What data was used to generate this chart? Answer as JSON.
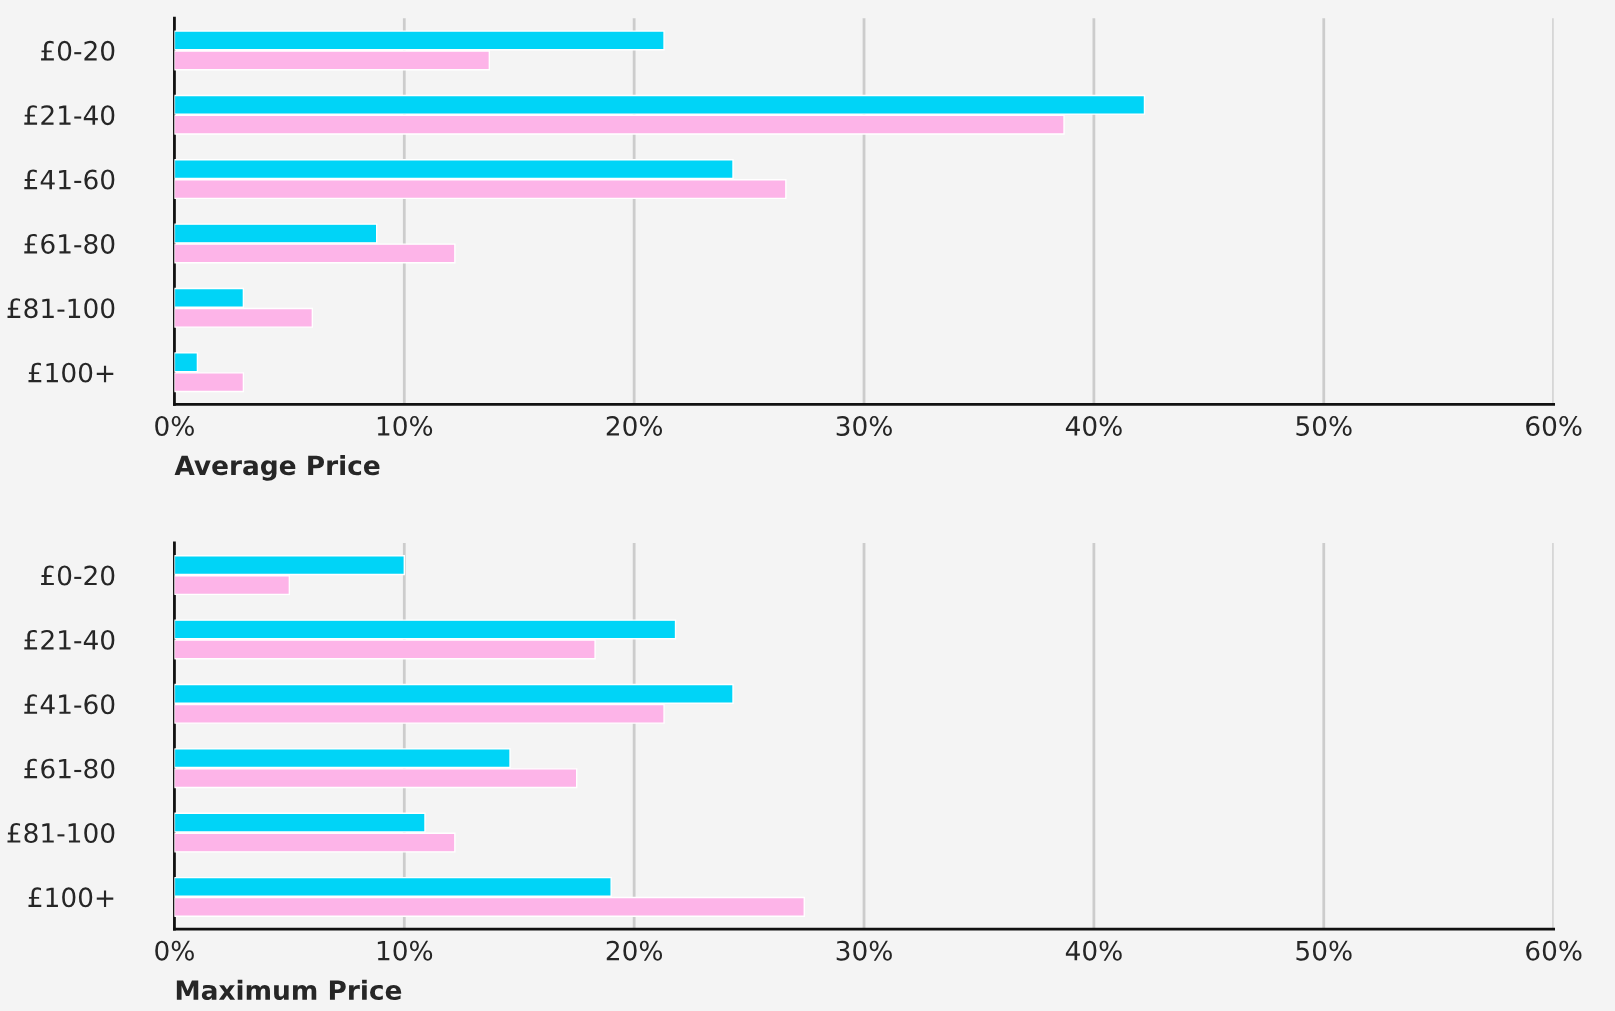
{
  "chart_data": [
    {
      "type": "bar",
      "orientation": "horizontal",
      "xlabel": "Average Price",
      "categories": [
        "£0-20",
        "£21-40",
        "£41-60",
        "£61-80",
        "£81-100",
        "£100+"
      ],
      "series": [
        {
          "color": "#00d4f7",
          "values": [
            21.3,
            42.2,
            24.3,
            8.8,
            3.0,
            1.0
          ]
        },
        {
          "color": "#fdb4e8",
          "values": [
            13.7,
            38.7,
            26.6,
            12.2,
            6.0,
            3.0
          ]
        }
      ],
      "xlim": [
        0,
        60
      ],
      "xticks": [
        {
          "value": 0,
          "label": "0%"
        },
        {
          "value": 10,
          "label": "10%"
        },
        {
          "value": 20,
          "label": "20%"
        },
        {
          "value": 30,
          "label": "30%"
        },
        {
          "value": 40,
          "label": "40%"
        },
        {
          "value": 50,
          "label": "50%"
        },
        {
          "value": 60,
          "label": "60%"
        }
      ],
      "grid": "x"
    },
    {
      "type": "bar",
      "orientation": "horizontal",
      "xlabel": "Maximum Price",
      "categories": [
        "£0-20",
        "£21-40",
        "£41-60",
        "£61-80",
        "£81-100",
        "£100+"
      ],
      "series": [
        {
          "color": "#00d4f7",
          "values": [
            10.0,
            21.8,
            24.3,
            14.6,
            10.9,
            19.0
          ]
        },
        {
          "color": "#fdb4e8",
          "values": [
            5.0,
            18.3,
            21.3,
            17.5,
            12.2,
            27.4
          ]
        }
      ],
      "xlim": [
        0,
        60
      ],
      "xticks": [
        {
          "value": 0,
          "label": "0%"
        },
        {
          "value": 10,
          "label": "10%"
        },
        {
          "value": 20,
          "label": "20%"
        },
        {
          "value": 30,
          "label": "30%"
        },
        {
          "value": 40,
          "label": "40%"
        },
        {
          "value": 50,
          "label": "50%"
        },
        {
          "value": 60,
          "label": "60%"
        }
      ],
      "grid": "x"
    }
  ]
}
